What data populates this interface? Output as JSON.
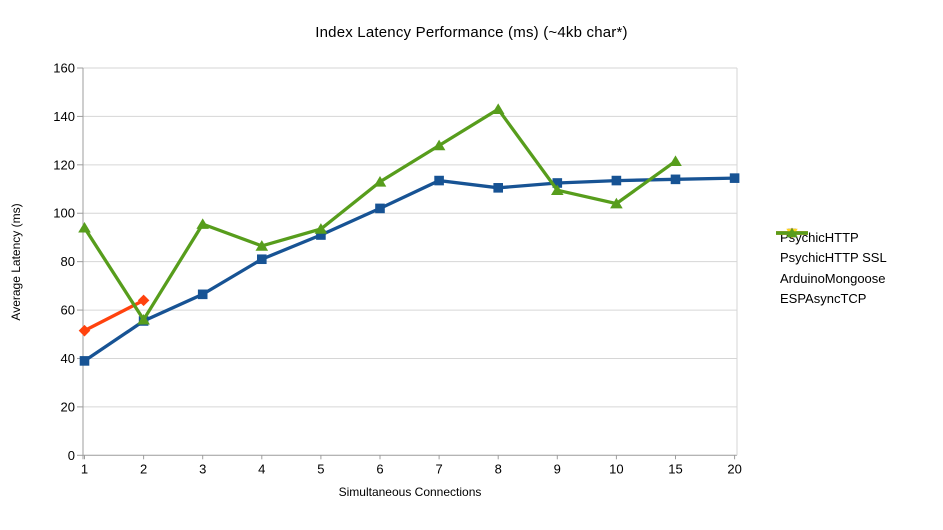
{
  "title": "Index Latency Performance (ms) (~4kb char*)",
  "chart_data": {
    "type": "line",
    "title": "Index Latency Performance (ms) (~4kb char*)",
    "xlabel": "Simultaneous Connections",
    "ylabel": "Average Latency (ms)",
    "categories": [
      "1",
      "2",
      "3",
      "4",
      "5",
      "6",
      "7",
      "8",
      "9",
      "10",
      "15",
      "20"
    ],
    "ylim": [
      0,
      160
    ],
    "ytick_interval": 20,
    "grid": true,
    "legend_position": "right",
    "colors": {
      "grid": "#d6d6d6",
      "axis": "#9c9c9c",
      "text": "#000000"
    },
    "series": [
      {
        "name": "PsychicHTTP",
        "color": "#175394",
        "marker": "square",
        "values": [
          39,
          55.5,
          66.5,
          81,
          91,
          102,
          113.5,
          110.5,
          112.5,
          113.5,
          114,
          114.5
        ]
      },
      {
        "name": "PsychicHTTP SSL",
        "color": "#FF420E",
        "marker": "diamond",
        "values": [
          51.5,
          64,
          null,
          null,
          null,
          null,
          null,
          null,
          null,
          null,
          null,
          null
        ]
      },
      {
        "name": "ArduinoMongoose",
        "color": "#FFD320",
        "marker": "triangle-down",
        "values": [
          null,
          null,
          null,
          null,
          null,
          null,
          null,
          null,
          null,
          null,
          null,
          null
        ]
      },
      {
        "name": "ESPAsyncTCP",
        "color": "#579D1C",
        "marker": "triangle-up",
        "values": [
          94,
          56,
          95.5,
          86.5,
          93.5,
          113,
          128,
          143,
          109.5,
          104,
          121.5,
          null
        ]
      }
    ]
  }
}
